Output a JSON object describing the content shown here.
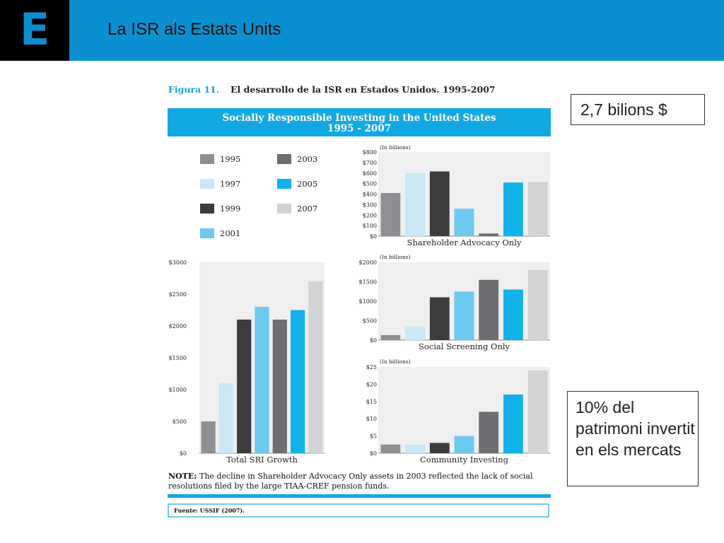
{
  "header": {
    "logo": "E",
    "title": "La ISR als Estats Units"
  },
  "callouts": {
    "total": "2,7 bilions $",
    "share": "10% del patrimoni invertit en els mercats"
  },
  "figure": {
    "caption_label": "Figura 11.",
    "caption_text": "El desarrollo de la ISR en Estados Unidos. 1995-2007",
    "banner_line1": "Socially Responsible Investing in the United States",
    "banner_line2": "1995 - 2007",
    "note_bold": "NOTE:",
    "note_line1": "The decline in Shareholder Advocacy Only assets in 2003 reflected the lack of social",
    "note_line2": "resolutions filed by the large TIAA-CREF pension funds.",
    "source": "Fuente: USSIF (2007)."
  },
  "colors": {
    "1995": "#8e8f93",
    "1997": "#c9e8f8",
    "1999": "#3c3c3e",
    "2001": "#6cc9ef",
    "2003": "#6e6e72",
    "2005": "#0fb2ea",
    "2007": "#d2d3d5",
    "banner": "#12a9e3",
    "header": "#0a8fd0"
  },
  "chart_data": [
    {
      "type": "bar",
      "title": "Total SRI Growth",
      "categories": [
        "1995",
        "1997",
        "1999",
        "2001",
        "2003",
        "2005",
        "2007"
      ],
      "values": [
        500,
        1100,
        2100,
        2300,
        2100,
        2250,
        2700
      ],
      "ylim": [
        0,
        3000
      ],
      "yticks": [
        "$0",
        "$500",
        "$1000",
        "$1500",
        "$2000",
        "$2500",
        "$3000"
      ],
      "unit_label": ""
    },
    {
      "type": "bar",
      "title": "Shareholder Advocacy Only",
      "categories": [
        "1995",
        "1997",
        "1999",
        "2001",
        "2003",
        "2005",
        "2007"
      ],
      "values": [
        410,
        600,
        615,
        260,
        25,
        510,
        515
      ],
      "ylim": [
        0,
        800
      ],
      "yticks": [
        "$0",
        "$100",
        "$200",
        "$300",
        "$400",
        "$500",
        "$600",
        "$700",
        "$800"
      ],
      "unit_label": "(In billions)"
    },
    {
      "type": "bar",
      "title": "Social Screening Only",
      "categories": [
        "1995",
        "1997",
        "1999",
        "2001",
        "2003",
        "2005",
        "2007"
      ],
      "values": [
        130,
        350,
        1100,
        1250,
        1550,
        1300,
        1800
      ],
      "ylim": [
        0,
        2000
      ],
      "yticks": [
        "$0",
        "$500",
        "$1000",
        "$1500",
        "$2000"
      ],
      "unit_label": "(In billions)"
    },
    {
      "type": "bar",
      "title": "Community Investing",
      "categories": [
        "1995",
        "1997",
        "1999",
        "2001",
        "2003",
        "2005",
        "2007"
      ],
      "values": [
        2.5,
        2.5,
        3,
        5,
        12,
        17,
        24
      ],
      "ylim": [
        0,
        25
      ],
      "yticks": [
        "$0",
        "$5",
        "$10",
        "$15",
        "$20",
        "$25"
      ],
      "unit_label": "(In billions)"
    }
  ],
  "legend": [
    {
      "label": "1995",
      "color": "#8e8f93"
    },
    {
      "label": "1997",
      "color": "#c9e8f8"
    },
    {
      "label": "1999",
      "color": "#3c3c3e"
    },
    {
      "label": "2001",
      "color": "#6cc9ef"
    },
    {
      "label": "2003",
      "color": "#6e6e72"
    },
    {
      "label": "2005",
      "color": "#0fb2ea"
    },
    {
      "label": "2007",
      "color": "#d2d3d5"
    }
  ]
}
